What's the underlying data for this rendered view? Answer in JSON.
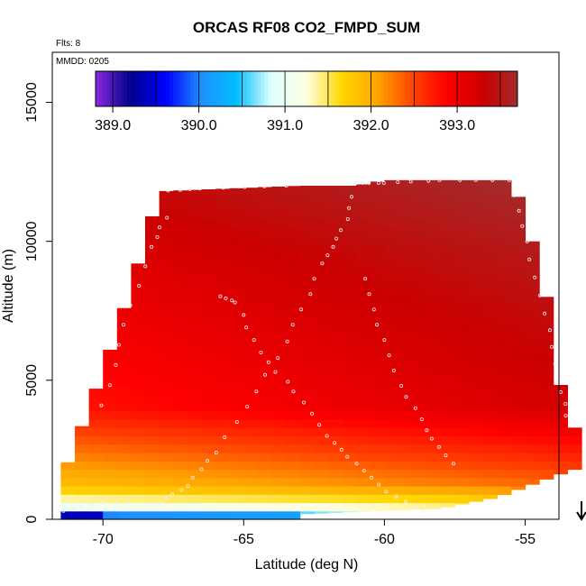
{
  "chart_data": {
    "type": "heatmap",
    "title": "ORCAS RF08 CO2_FMPD_SUM",
    "annotations": {
      "flights": "Flts: 8",
      "date": "MMDD: 0205"
    },
    "xlabel": "Latitude (deg N)",
    "ylabel": "Altitude (m)",
    "xlim": [
      -71.8,
      -53.8
    ],
    "ylim": [
      0,
      16800
    ],
    "x_ticks": [
      -70,
      -65,
      -60,
      -55
    ],
    "x_tick_labels": [
      "-70",
      "-65",
      "-60",
      "-55"
    ],
    "y_ticks": [
      0,
      5000,
      10000,
      15000
    ],
    "y_tick_labels": [
      "0",
      "5000",
      "10000",
      "15000"
    ],
    "colorbar": {
      "vmin": 388.8,
      "vmax": 393.7,
      "ticks": [
        389.0,
        390.0,
        391.0,
        392.0,
        393.0
      ],
      "tick_labels": [
        "389.0",
        "390.0",
        "391.0",
        "392.0",
        "393.0"
      ],
      "colors": [
        "#8a2be2",
        "#00008b",
        "#0000ff",
        "#1e90ff",
        "#00bfff",
        "#e0ffff",
        "#ffffe0",
        "#ffd700",
        "#ffa500",
        "#ff4500",
        "#ff0000",
        "#cc0000",
        "#a52a2a"
      ]
    },
    "field": {
      "lat_edges": [
        -71.5,
        -53.3
      ],
      "top_profile": [
        [
          -71.5,
          1400
        ],
        [
          -70.5,
          4000
        ],
        [
          -69.5,
          6800
        ],
        [
          -68.5,
          10000
        ],
        [
          -68.0,
          11800
        ],
        [
          -63.0,
          12000
        ],
        [
          -61.0,
          12000
        ],
        [
          -60.0,
          12200
        ],
        [
          -55.5,
          12200
        ],
        [
          -55.0,
          11000
        ],
        [
          -54.0,
          7000
        ],
        [
          -53.8,
          5000
        ],
        [
          -53.5,
          4000
        ],
        [
          -53.3,
          3300
        ]
      ],
      "bottom_profile": [
        [
          -71.5,
          0
        ],
        [
          -63.0,
          0
        ],
        [
          -63.0,
          200
        ],
        [
          -58.0,
          400
        ],
        [
          -56.0,
          800
        ],
        [
          -53.3,
          1800
        ]
      ]
    },
    "flight_track_marker": {
      "lat": -53.0,
      "direction": "down"
    }
  }
}
